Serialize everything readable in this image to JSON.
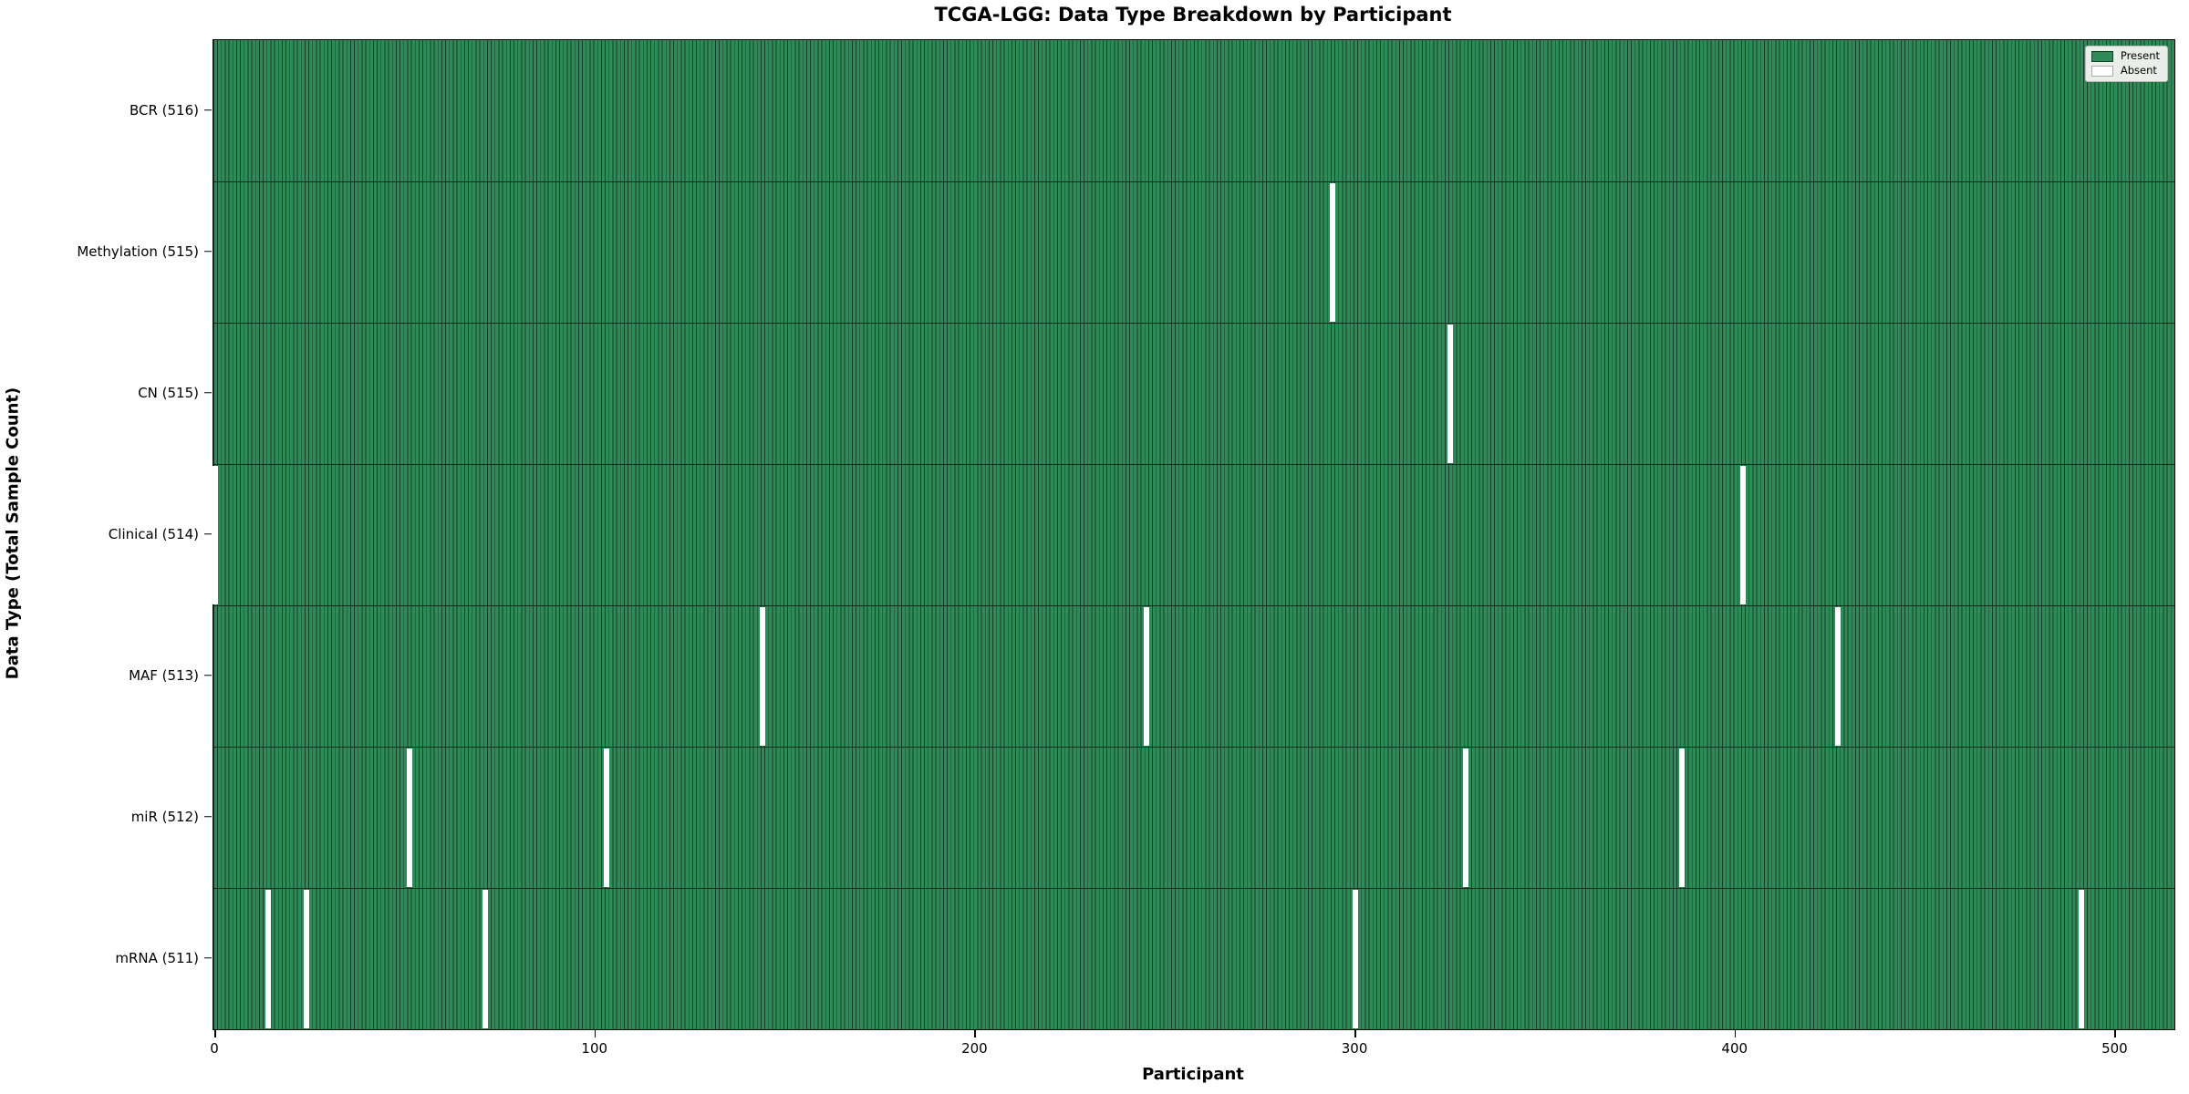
{
  "chart_data": {
    "type": "heatmap",
    "title": "TCGA-LGG: Data Type Breakdown by Participant",
    "xlabel": "Participant",
    "ylabel": "Data Type (Total Sample Count)",
    "x_ticks": [
      0,
      100,
      200,
      300,
      400,
      500
    ],
    "n_participants": 516,
    "grid": false,
    "legend_position": "upper right",
    "legend": [
      {
        "label": "Present",
        "color": "#2e8b57"
      },
      {
        "label": "Absent",
        "color": "#ffffff"
      }
    ],
    "rows": [
      {
        "label": "BCR (516)",
        "total": 516,
        "absent_participants": []
      },
      {
        "label": "Methylation (515)",
        "total": 515,
        "absent_participants": [
          294
        ]
      },
      {
        "label": "CN (515)",
        "total": 515,
        "absent_participants": [
          325
        ]
      },
      {
        "label": "Clinical (514)",
        "total": 514,
        "absent_participants": [
          0,
          402
        ]
      },
      {
        "label": "MAF (513)",
        "total": 513,
        "absent_participants": [
          144,
          245,
          427
        ]
      },
      {
        "label": "miR (512)",
        "total": 512,
        "absent_participants": [
          51,
          103,
          329,
          386
        ]
      },
      {
        "label": "mRNA (511)",
        "total": 511,
        "absent_participants": [
          14,
          24,
          71,
          300,
          491
        ]
      }
    ],
    "colors": {
      "present_fill": "#2e8b57",
      "bar_edge": "#14402a",
      "absent_fill": "#ffffff",
      "row_separator": "#0e2c1c"
    }
  }
}
